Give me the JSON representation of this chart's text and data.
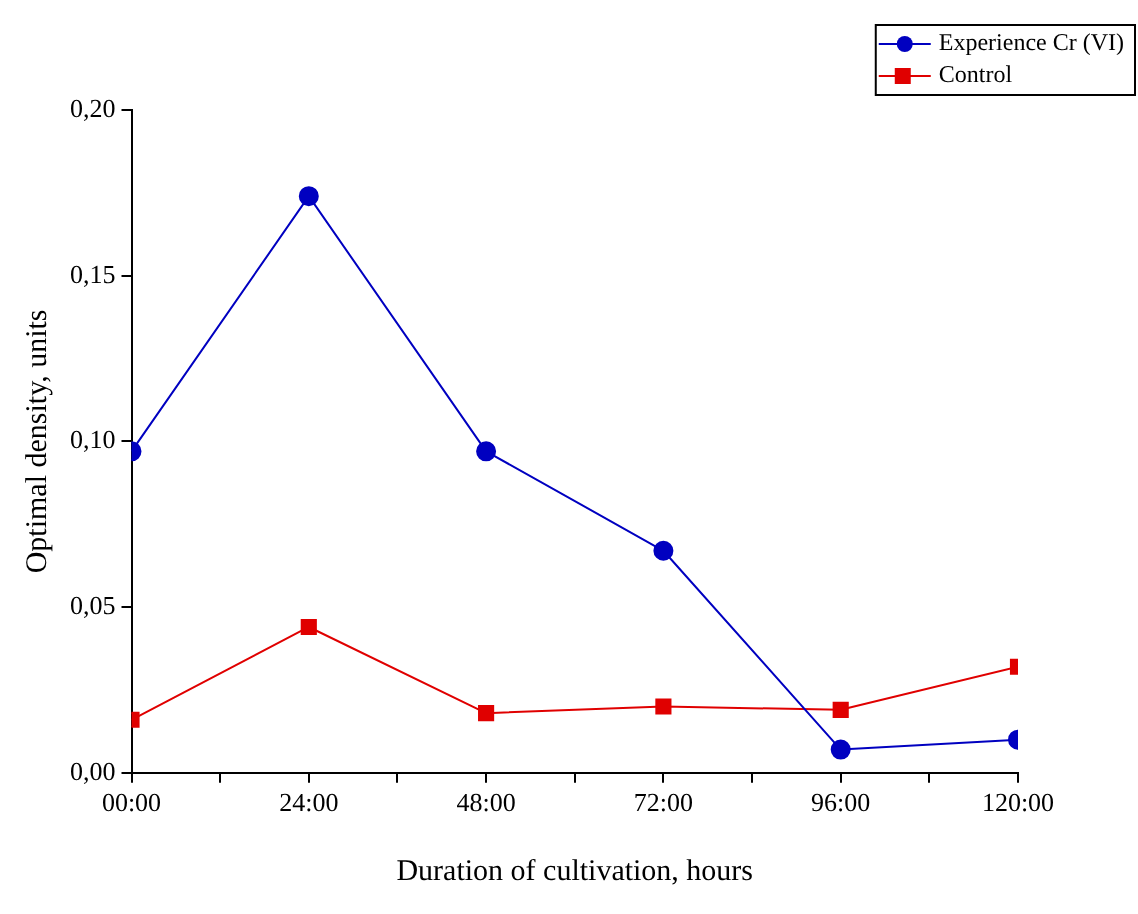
{
  "chart_data": {
    "type": "line",
    "xlabel": "Duration of cultivation, hours",
    "ylabel": "Optimal density, units",
    "x": [
      0,
      24,
      48,
      72,
      96,
      120
    ],
    "series": [
      {
        "name": "Experience Cr (VI)",
        "color": "#0000c0",
        "marker": "circle",
        "values": [
          0.097,
          0.174,
          0.097,
          0.067,
          0.007,
          0.01
        ]
      },
      {
        "name": "Control",
        "color": "#e00000",
        "marker": "square",
        "values": [
          0.016,
          0.044,
          0.018,
          0.02,
          0.019,
          0.032
        ]
      }
    ],
    "xlim": [
      0,
      120
    ],
    "xticks": [
      {
        "value": 0,
        "label": "00:00"
      },
      {
        "value": 12,
        "label": null
      },
      {
        "value": 24,
        "label": "24:00"
      },
      {
        "value": 36,
        "label": null
      },
      {
        "value": 48,
        "label": "48:00"
      },
      {
        "value": 60,
        "label": null
      },
      {
        "value": 72,
        "label": "72:00"
      },
      {
        "value": 84,
        "label": null
      },
      {
        "value": 96,
        "label": "96:00"
      },
      {
        "value": 108,
        "label": null
      },
      {
        "value": 120,
        "label": "120:00"
      }
    ],
    "ylim": [
      0,
      0.2
    ],
    "yticks": [
      {
        "value": 0,
        "label": "0,00"
      },
      {
        "value": 0.05,
        "label": "0,05"
      },
      {
        "value": 0.1,
        "label": "0,10"
      },
      {
        "value": 0.15,
        "label": "0,15"
      },
      {
        "value": 0.2,
        "label": "0,20"
      }
    ],
    "grid": false,
    "legend": "top right",
    "line_style": "solid"
  }
}
